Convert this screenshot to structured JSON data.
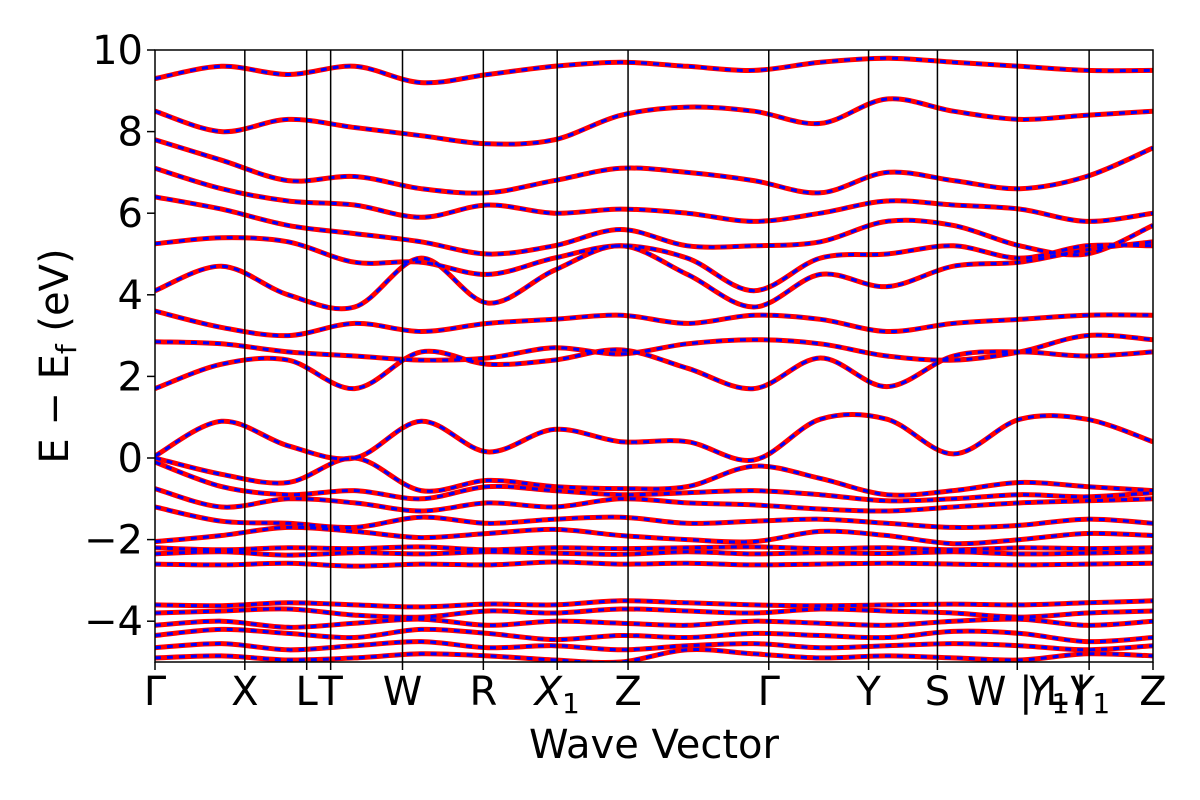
{
  "chart_data": {
    "type": "line",
    "title": "",
    "xlabel": "Wave Vector",
    "ylabel_main": "E − E",
    "ylabel_sub": "f",
    "ylabel_unit": " (eV)",
    "ylim": [
      -5,
      10
    ],
    "yticks": [
      -4,
      -2,
      0,
      2,
      4,
      6,
      8,
      10
    ],
    "ytick_labels": [
      "−4",
      "−2",
      "0",
      "2",
      "4",
      "6",
      "8",
      "10"
    ],
    "xlim": [
      0,
      1
    ],
    "high_symmetry_points": [
      {
        "label": "Γ",
        "x": 0.0,
        "sub": "",
        "italic": false
      },
      {
        "label": "X",
        "x": 0.09,
        "sub": "",
        "italic": false
      },
      {
        "label": "L",
        "x": 0.152,
        "sub": "",
        "italic": false
      },
      {
        "label": "T",
        "x": 0.176,
        "sub": "",
        "italic": false
      },
      {
        "label": "W",
        "x": 0.248,
        "sub": "",
        "italic": false
      },
      {
        "label": "R",
        "x": 0.329,
        "sub": "",
        "italic": false
      },
      {
        "label": "X",
        "x": 0.403,
        "sub": "1",
        "italic": true
      },
      {
        "label": "Z",
        "x": 0.474,
        "sub": "",
        "italic": false
      },
      {
        "label": "Γ",
        "x": 0.615,
        "sub": "",
        "italic": false
      },
      {
        "label": "Y",
        "x": 0.715,
        "sub": "",
        "italic": false
      },
      {
        "label": "S",
        "x": 0.784,
        "sub": "",
        "italic": false
      },
      {
        "label": "W | L",
        "x": 0.864,
        "sub": "",
        "italic": false
      },
      {
        "label": "Y",
        "x": 0.936,
        "sub": "1",
        "italic": true
      },
      {
        "label": "Z",
        "x": 1.0,
        "sub": "",
        "italic": false
      }
    ],
    "extra_xtick_labels": [
      {
        "label": "Y",
        "sub": "1",
        "x": 0.895,
        "italic": true
      },
      {
        "label": "|",
        "sub": "",
        "x": 0.928,
        "italic": false
      }
    ],
    "series": [
      {
        "color": "#ff0000",
        "style": "solid",
        "width": 5
      },
      {
        "color": "#0000ff",
        "style": "dashed",
        "width": 3
      }
    ],
    "bands": [
      [
        -4.9,
        -4.85,
        -4.95,
        -4.9,
        -4.8,
        -4.85,
        -4.95,
        -5.0,
        -4.7,
        -4.8,
        -4.9,
        -4.85,
        -4.9,
        -4.95,
        -4.8,
        -4.85
      ],
      [
        -4.65,
        -4.55,
        -4.7,
        -4.6,
        -4.5,
        -4.65,
        -4.6,
        -4.7,
        -4.6,
        -4.55,
        -4.65,
        -4.6,
        -4.55,
        -4.6,
        -4.7,
        -4.6
      ],
      [
        -4.35,
        -4.2,
        -4.3,
        -4.4,
        -4.2,
        -4.3,
        -4.45,
        -4.35,
        -4.4,
        -4.3,
        -4.35,
        -4.4,
        -4.25,
        -4.3,
        -4.5,
        -4.4
      ],
      [
        -4.1,
        -4.0,
        -4.15,
        -4.05,
        -3.95,
        -4.1,
        -4.0,
        -4.05,
        -4.1,
        -4.0,
        -4.05,
        -4.1,
        -4.0,
        -3.95,
        -4.1,
        -4.0
      ],
      [
        -3.8,
        -3.75,
        -3.7,
        -3.85,
        -3.9,
        -3.75,
        -3.8,
        -3.7,
        -3.75,
        -3.8,
        -3.7,
        -3.75,
        -3.8,
        -3.9,
        -3.8,
        -3.75
      ],
      [
        -3.6,
        -3.62,
        -3.55,
        -3.6,
        -3.65,
        -3.58,
        -3.6,
        -3.5,
        -3.55,
        -3.6,
        -3.62,
        -3.6,
        -3.58,
        -3.6,
        -3.55,
        -3.5
      ],
      [
        -2.6,
        -2.62,
        -2.58,
        -2.65,
        -2.6,
        -2.62,
        -2.55,
        -2.6,
        -2.58,
        -2.62,
        -2.6,
        -2.58,
        -2.6,
        -2.62,
        -2.6,
        -2.58
      ],
      [
        -2.35,
        -2.3,
        -2.38,
        -2.32,
        -2.35,
        -2.3,
        -2.33,
        -2.36,
        -2.3,
        -2.35,
        -2.32,
        -2.34,
        -2.3,
        -2.35,
        -2.33,
        -2.3
      ],
      [
        -2.2,
        -2.25,
        -2.2,
        -2.22,
        -2.18,
        -2.25,
        -2.2,
        -2.22,
        -2.2,
        -2.18,
        -2.22,
        -2.2,
        -2.25,
        -2.2,
        -2.22,
        -2.2
      ],
      [
        -2.05,
        -1.9,
        -1.7,
        -1.8,
        -1.95,
        -1.85,
        -1.75,
        -1.9,
        -2.0,
        -2.05,
        -1.8,
        -1.9,
        -2.1,
        -2.0,
        -1.85,
        -1.9
      ],
      [
        -1.2,
        -1.55,
        -1.6,
        -1.7,
        -1.45,
        -1.6,
        -1.5,
        -1.45,
        -1.6,
        -1.55,
        -1.5,
        -1.6,
        -1.7,
        -1.65,
        -1.5,
        -1.6
      ],
      [
        -0.75,
        -1.2,
        -1.0,
        -1.1,
        -1.3,
        -1.1,
        -1.2,
        -1.0,
        -1.1,
        -1.15,
        -1.25,
        -1.3,
        -1.2,
        -1.1,
        -1.05,
        -1.0
      ],
      [
        -0.1,
        -0.7,
        -0.9,
        -0.8,
        -1.0,
        -0.7,
        -0.8,
        -0.9,
        -0.85,
        -0.8,
        -0.9,
        -1.05,
        -1.0,
        -0.9,
        -0.95,
        -0.85
      ],
      [
        0.0,
        -0.4,
        -0.6,
        0.0,
        -0.8,
        -0.55,
        -0.7,
        -0.75,
        -0.7,
        -0.2,
        -0.5,
        -0.9,
        -0.8,
        -0.6,
        -0.7,
        -0.8
      ],
      [
        0.05,
        0.9,
        0.3,
        0.0,
        0.9,
        0.15,
        0.7,
        0.4,
        0.4,
        -0.05,
        0.95,
        0.95,
        0.1,
        0.95,
        0.95,
        0.4
      ],
      [
        1.7,
        2.3,
        2.4,
        1.7,
        2.6,
        2.3,
        2.4,
        2.65,
        2.2,
        1.7,
        2.45,
        1.75,
        2.5,
        2.6,
        2.5,
        2.6
      ],
      [
        2.85,
        2.8,
        2.6,
        2.5,
        2.4,
        2.45,
        2.7,
        2.55,
        2.8,
        2.9,
        2.8,
        2.5,
        2.4,
        2.6,
        3.0,
        2.9
      ],
      [
        3.6,
        3.2,
        3.0,
        3.3,
        3.1,
        3.3,
        3.4,
        3.5,
        3.3,
        3.5,
        3.4,
        3.1,
        3.3,
        3.4,
        3.5,
        3.5
      ],
      [
        4.1,
        4.7,
        4.0,
        3.7,
        4.9,
        3.8,
        4.6,
        5.2,
        4.5,
        3.7,
        4.5,
        4.2,
        4.7,
        4.8,
        5.1,
        5.3
      ],
      [
        5.25,
        5.4,
        5.3,
        4.8,
        4.8,
        4.5,
        4.9,
        5.2,
        4.9,
        4.1,
        4.9,
        5.0,
        5.2,
        4.9,
        5.2,
        5.2
      ],
      [
        6.4,
        6.1,
        5.7,
        5.5,
        5.3,
        5.0,
        5.2,
        5.6,
        5.2,
        5.2,
        5.3,
        5.8,
        5.7,
        5.2,
        5.0,
        5.7
      ],
      [
        7.1,
        6.6,
        6.3,
        6.2,
        5.9,
        6.2,
        6.0,
        6.1,
        6.0,
        5.8,
        6.0,
        6.3,
        6.2,
        6.1,
        5.8,
        6.0
      ],
      [
        7.8,
        7.3,
        6.8,
        6.9,
        6.6,
        6.5,
        6.8,
        7.1,
        7.0,
        6.8,
        6.5,
        7.0,
        6.8,
        6.6,
        6.9,
        7.6
      ],
      [
        8.5,
        8.0,
        8.3,
        8.1,
        7.9,
        7.7,
        7.8,
        8.4,
        8.6,
        8.5,
        8.2,
        8.8,
        8.5,
        8.3,
        8.4,
        8.5
      ],
      [
        9.3,
        9.6,
        9.4,
        9.6,
        9.2,
        9.4,
        9.6,
        9.7,
        9.6,
        9.5,
        9.7,
        9.8,
        9.7,
        9.6,
        9.5,
        9.5
      ]
    ]
  }
}
